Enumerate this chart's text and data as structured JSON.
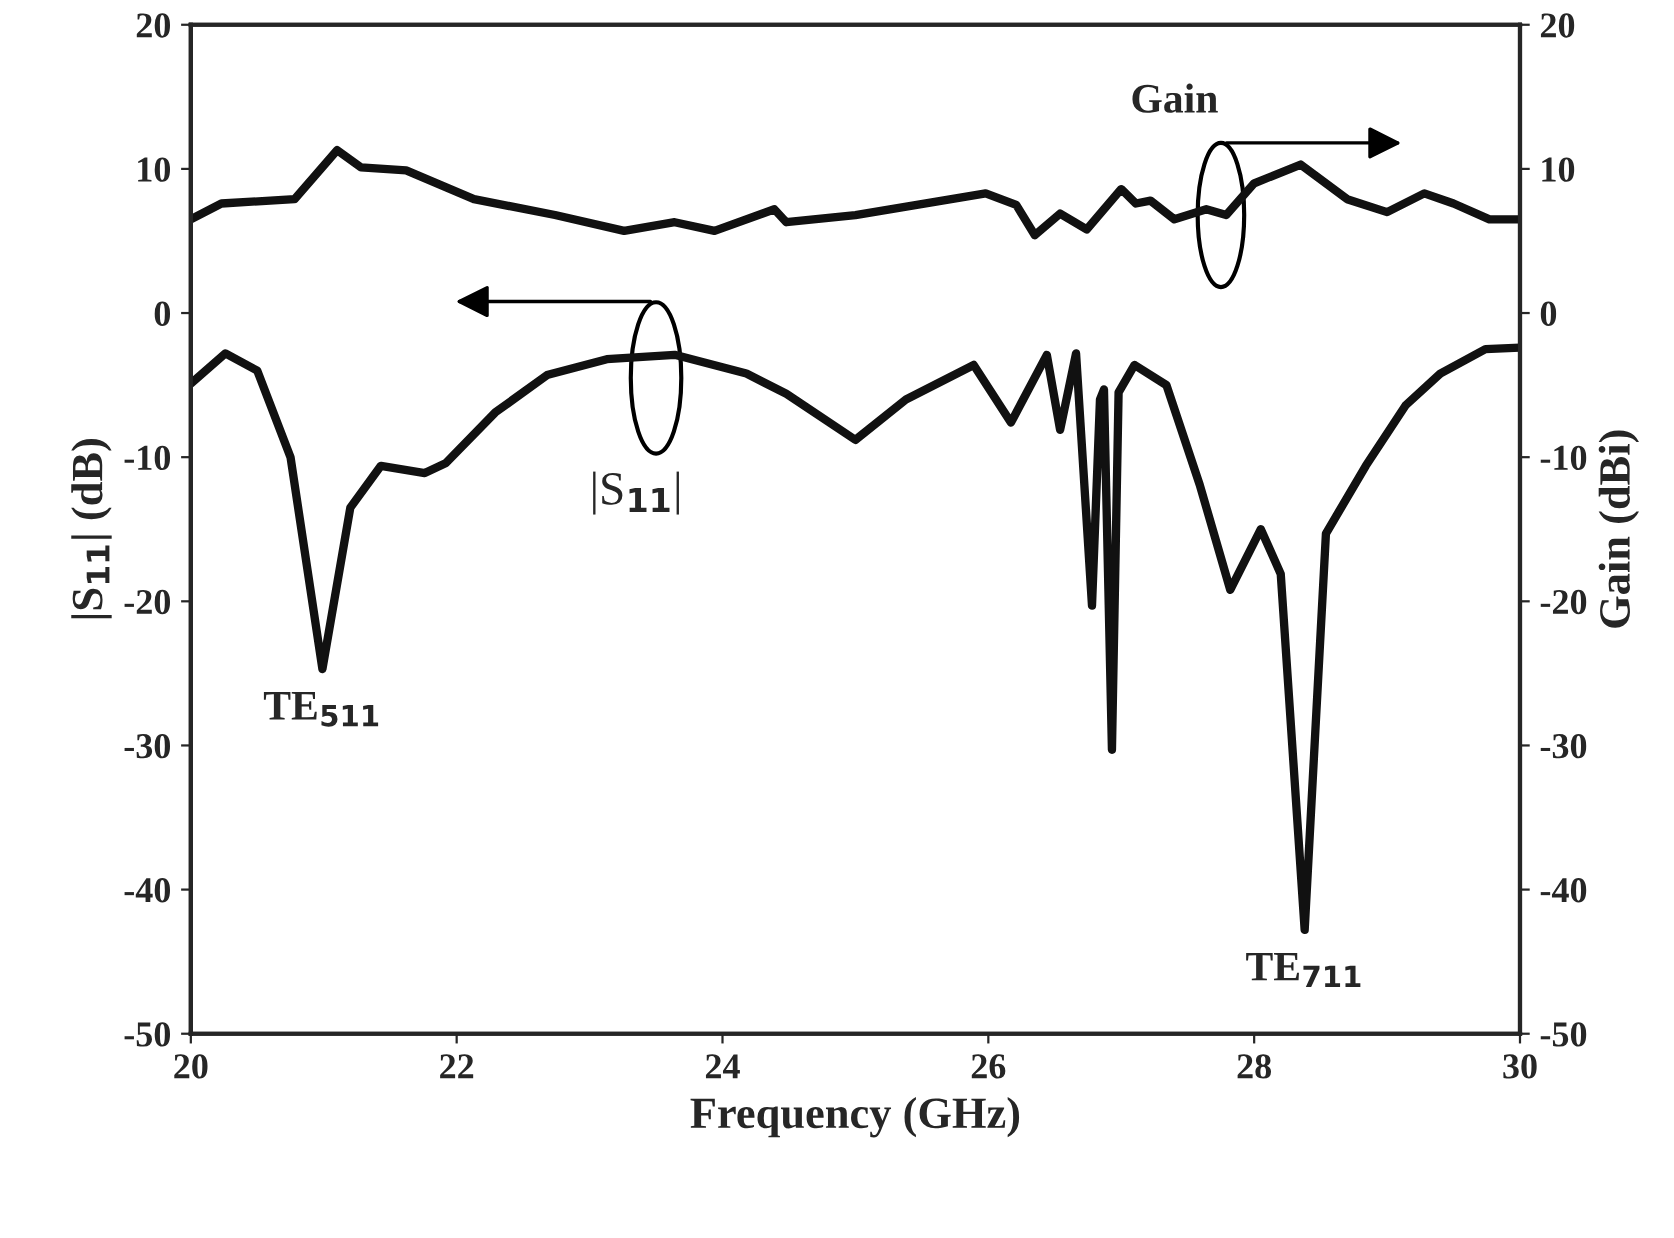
{
  "chart_data": {
    "type": "line",
    "xlabel": "Frequency (GHz)",
    "ylabel": "|S$_{11}$| (dB)",
    "y2label": "Gain (dBi)",
    "xlim": [
      20,
      30
    ],
    "xticks": [
      20,
      22,
      24,
      26,
      28,
      30
    ],
    "ylim": [
      -50,
      20
    ],
    "yticks": [
      -50,
      -40,
      -30,
      -20,
      -10,
      0,
      10,
      20
    ],
    "y2lim": [
      -50,
      20
    ],
    "y2ticks": [
      -50,
      -40,
      -30,
      -20,
      -10,
      0,
      10,
      20
    ],
    "grid": false,
    "marker": "none",
    "line_style": "solid",
    "series": [
      {
        "color": "#111111",
        "x": [
          20,
          20.26,
          20.5,
          20.75,
          20.99,
          21.2,
          21.43,
          21.76,
          21.92,
          22.29,
          22.68,
          23.13,
          23.64,
          24.18,
          24.48,
          25.0,
          25.38,
          25.89,
          26.17,
          26.44,
          26.54,
          26.66,
          26.78,
          26.84,
          26.87,
          26.93,
          26.98,
          27.1,
          27.34,
          27.59,
          27.82,
          28.05,
          28.2,
          28.38,
          28.54,
          28.84,
          29.14,
          29.4,
          29.74,
          30
        ],
        "values": [
          -4.9,
          -2.8,
          -4.0,
          -10.0,
          -24.7,
          -13.5,
          -10.6,
          -11.1,
          -10.4,
          -6.9,
          -4.3,
          -3.2,
          -2.9,
          -4.2,
          -5.6,
          -8.8,
          -6.0,
          -3.6,
          -7.6,
          -2.9,
          -8.1,
          -2.8,
          -20.3,
          -6.0,
          -5.3,
          -30.3,
          -5.5,
          -3.6,
          -5.0,
          -11.9,
          -19.2,
          -15.0,
          -18.1,
          -42.8,
          -15.3,
          -10.6,
          -6.4,
          -4.2,
          -2.5,
          -2.4
        ]
      },
      {
        "color": "#111111",
        "axis": "y2",
        "x": [
          20,
          20.23,
          20.78,
          21.1,
          21.28,
          21.62,
          22.13,
          22.74,
          23.26,
          23.64,
          23.94,
          24.39,
          24.48,
          25.0,
          25.98,
          26.21,
          26.35,
          26.54,
          26.74,
          27.0,
          27.11,
          27.22,
          27.4,
          27.64,
          27.79,
          28.0,
          28.35,
          28.7,
          29.0,
          29.28,
          29.5,
          29.77,
          30
        ],
        "values": [
          6.5,
          7.6,
          7.9,
          11.3,
          10.1,
          9.9,
          7.9,
          6.8,
          5.7,
          6.3,
          5.7,
          7.2,
          6.3,
          6.8,
          8.3,
          7.5,
          5.4,
          6.9,
          5.8,
          8.6,
          7.6,
          7.8,
          6.5,
          7.2,
          6.8,
          9.0,
          10.3,
          7.9,
          7.0,
          8.3,
          7.6,
          6.5,
          6.5
        ]
      }
    ],
    "annotations": [
      {
        "text": "Gain",
        "x": 27.75,
        "y": 6.8
      },
      {
        "text": "|S$_{11}$|",
        "x": 23.5,
        "y": -3.0
      },
      {
        "text": "TE$_{511}$",
        "x": 20.99,
        "y": -24.7
      },
      {
        "text": "TE$_{711}$",
        "x": 28.38,
        "y": -42.8
      }
    ]
  }
}
